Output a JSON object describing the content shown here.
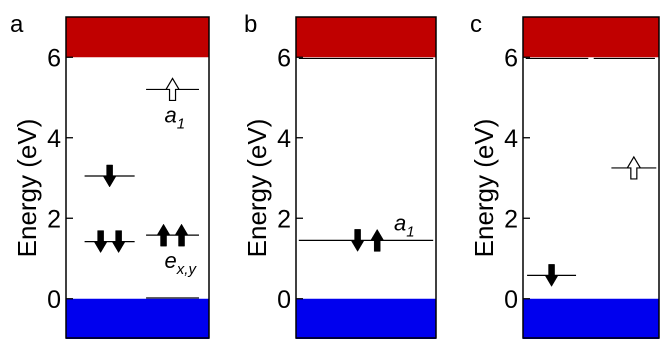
{
  "figure": {
    "ylabel": "Energy (eV)",
    "panel_labels": [
      "a",
      "b",
      "c"
    ]
  },
  "colors": {
    "conduction_band": "#c00000",
    "valence_band": "#0000ee",
    "frame": "#000000"
  },
  "chart_data": [
    {
      "type": "energy-level-diagram",
      "panel": "a",
      "ylabel": "Energy (eV)",
      "ylim": [
        -1.0,
        7.0
      ],
      "yticks": [
        0,
        2,
        4,
        6
      ],
      "bands": {
        "valence_top": 0.0,
        "conduction_bottom": 6.0
      },
      "levels": [
        {
          "energy": 3.05,
          "column": "left",
          "electrons": [
            "down"
          ],
          "label": ""
        },
        {
          "energy": 1.42,
          "column": "left",
          "electrons": [
            "down",
            "down"
          ],
          "label": ""
        },
        {
          "energy": 5.2,
          "column": "right",
          "electrons": [
            "up-empty"
          ],
          "label": "a",
          "label_sub": "1",
          "label_pos": "below"
        },
        {
          "energy": 1.58,
          "column": "right",
          "electrons": [
            "up",
            "up"
          ],
          "label": "e",
          "label_sub": "x,y",
          "label_pos": "below"
        },
        {
          "energy": 0.02,
          "column": "right",
          "electrons": [],
          "label": ""
        }
      ]
    },
    {
      "type": "energy-level-diagram",
      "panel": "b",
      "ylabel": "Energy (eV)",
      "ylim": [
        -1.0,
        7.0
      ],
      "yticks": [
        0,
        2,
        4,
        6
      ],
      "bands": {
        "valence_top": 0.0,
        "conduction_bottom": 6.0
      },
      "levels": [
        {
          "energy": 5.97,
          "column": "full",
          "electrons": [],
          "label": ""
        },
        {
          "energy": 1.45,
          "column": "full",
          "electrons": [
            "down",
            "up"
          ],
          "label": "a",
          "label_sub": "1",
          "label_pos": "above"
        }
      ]
    },
    {
      "type": "energy-level-diagram",
      "panel": "c",
      "ylabel": "Energy (eV)",
      "ylim": [
        -1.0,
        7.0
      ],
      "yticks": [
        0,
        2,
        4,
        6
      ],
      "bands": {
        "valence_top": 0.0,
        "conduction_bottom": 6.0
      },
      "levels": [
        {
          "energy": 5.97,
          "column": "left",
          "electrons": [],
          "label": ""
        },
        {
          "energy": 5.97,
          "column": "right",
          "electrons": [],
          "label": ""
        },
        {
          "energy": 3.25,
          "column": "right",
          "electrons": [
            "up-empty"
          ],
          "label": ""
        },
        {
          "energy": 0.58,
          "column": "left",
          "electrons": [
            "down"
          ],
          "label": ""
        }
      ]
    }
  ]
}
